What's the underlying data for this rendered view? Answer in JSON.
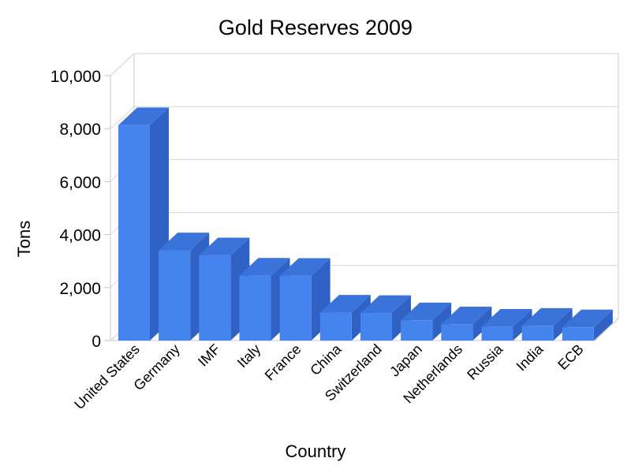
{
  "chart_data": {
    "type": "bar",
    "title": "Gold Reserves 2009",
    "xlabel": "Country",
    "ylabel": "Tons",
    "categories": [
      "United States",
      "Germany",
      "IMF",
      "Italy",
      "France",
      "China",
      "Switzerland",
      "Japan",
      "Netherlands",
      "Russia",
      "India",
      "ECB"
    ],
    "values": [
      8133,
      3408,
      3217,
      2451,
      2445,
      1054,
      1040,
      765,
      612,
      523,
      558,
      501
    ],
    "ylim": [
      0,
      10000
    ],
    "yticks": [
      "0",
      "2,000",
      "4,000",
      "6,000",
      "8,000",
      "10,000"
    ],
    "ytick_values": [
      0,
      2000,
      4000,
      6000,
      8000,
      10000
    ],
    "grid": true,
    "legend": "none",
    "style": "3d",
    "colors": {
      "bar_front": "#4584ee",
      "bar_top": "#3a73d9",
      "bar_side": "#2f62c4"
    }
  }
}
